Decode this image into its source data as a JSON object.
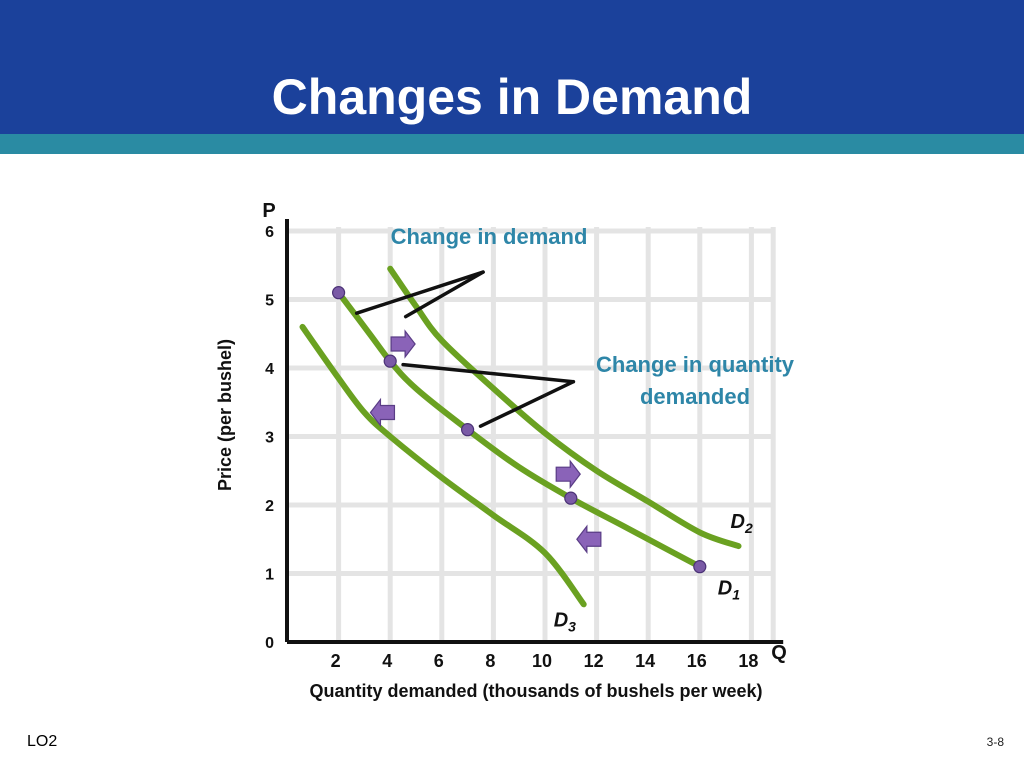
{
  "slide": {
    "title": "Changes in Demand",
    "footer_left": "LO2",
    "footer_right": "3-8"
  },
  "colors": {
    "header": "#1b419b",
    "stripe": "#2a8ba3",
    "curve": "#6aa121",
    "point": "#7a5aa6",
    "arrow": "#8a63b8",
    "annotation": "#2e86a8"
  },
  "chart_data": {
    "type": "line",
    "title": "",
    "xlabel": "Quantity demanded (thousands of bushels per week)",
    "ylabel": "Price (per bushel)",
    "x_axis_letter": "Q",
    "y_axis_letter": "P",
    "xlim": [
      0,
      19
    ],
    "ylim": [
      0,
      6
    ],
    "xticks": [
      2,
      4,
      6,
      8,
      10,
      12,
      14,
      16,
      18
    ],
    "yticks": [
      0,
      1,
      2,
      3,
      4,
      5,
      6
    ],
    "grid": true,
    "series": [
      {
        "name": "D1",
        "label_main": "D",
        "label_sub": "1",
        "points": [
          [
            2,
            5.1
          ],
          [
            3.2,
            4.5
          ],
          [
            4,
            4.1
          ],
          [
            5,
            3.7
          ],
          [
            7,
            3.1
          ],
          [
            9,
            2.55
          ],
          [
            11,
            2.1
          ],
          [
            13,
            1.7
          ],
          [
            15,
            1.3
          ],
          [
            16,
            1.1
          ]
        ]
      },
      {
        "name": "D2",
        "label_main": "D",
        "label_sub": "2",
        "points": [
          [
            4,
            5.45
          ],
          [
            5,
            4.9
          ],
          [
            6,
            4.4
          ],
          [
            8,
            3.7
          ],
          [
            10,
            3.05
          ],
          [
            12,
            2.5
          ],
          [
            14,
            2.05
          ],
          [
            16,
            1.6
          ],
          [
            17.5,
            1.4
          ]
        ]
      },
      {
        "name": "D3",
        "label_main": "D",
        "label_sub": "3",
        "points": [
          [
            0.6,
            4.6
          ],
          [
            2,
            3.85
          ],
          [
            3,
            3.35
          ],
          [
            4,
            3.0
          ],
          [
            6,
            2.4
          ],
          [
            8,
            1.85
          ],
          [
            10,
            1.3
          ],
          [
            11.5,
            0.55
          ]
        ]
      }
    ],
    "points_on_D1": [
      [
        2,
        5.1
      ],
      [
        4,
        4.1
      ],
      [
        7,
        3.1
      ],
      [
        11,
        2.1
      ],
      [
        16,
        1.1
      ]
    ],
    "shift_arrows": [
      {
        "direction": "right",
        "at": [
          4.5,
          4.35
        ]
      },
      {
        "direction": "left",
        "at": [
          3.7,
          3.35
        ]
      },
      {
        "direction": "right",
        "at": [
          10.9,
          2.45
        ]
      },
      {
        "direction": "left",
        "at": [
          11.7,
          1.5
        ]
      }
    ],
    "annotations": [
      {
        "id": "change-in-demand",
        "lines": [
          "Change in demand"
        ],
        "pointer_tip": [
          7.6,
          5.4
        ],
        "pointer_targets": [
          [
            2.7,
            4.8
          ],
          [
            4.6,
            4.75
          ]
        ]
      },
      {
        "id": "change-in-qd",
        "lines": [
          "Change in quantity",
          "demanded"
        ],
        "pointer_tip": [
          11.1,
          3.8
        ],
        "pointer_targets": [
          [
            4.5,
            4.05
          ],
          [
            7.5,
            3.15
          ]
        ]
      }
    ]
  }
}
